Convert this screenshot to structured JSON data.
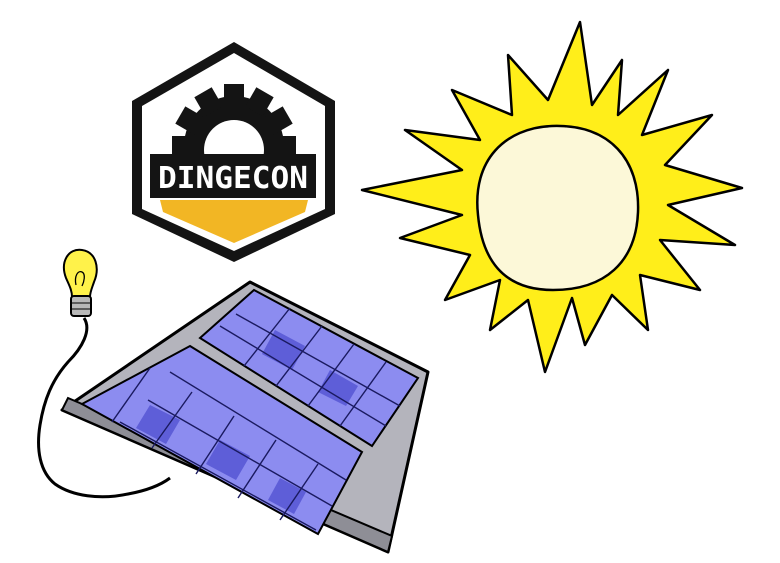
{
  "logo": {
    "text": "DINGECON",
    "colors": {
      "frame": "#141414",
      "banner": "#141414",
      "text": "#ffffff",
      "accent": "#f2b624"
    }
  },
  "illustration": {
    "sun_icon": "sun-icon",
    "panel_icon": "solar-panel-icon",
    "bulb_icon": "light-bulb-icon",
    "colors": {
      "sun_rays": "#ffee1a",
      "sun_core": "#fcf8d8",
      "panel_cells": "#8c8cf0",
      "panel_frame": "#b4b4bc",
      "bulb_glass": "#fff24a",
      "outline": "#000000"
    }
  }
}
